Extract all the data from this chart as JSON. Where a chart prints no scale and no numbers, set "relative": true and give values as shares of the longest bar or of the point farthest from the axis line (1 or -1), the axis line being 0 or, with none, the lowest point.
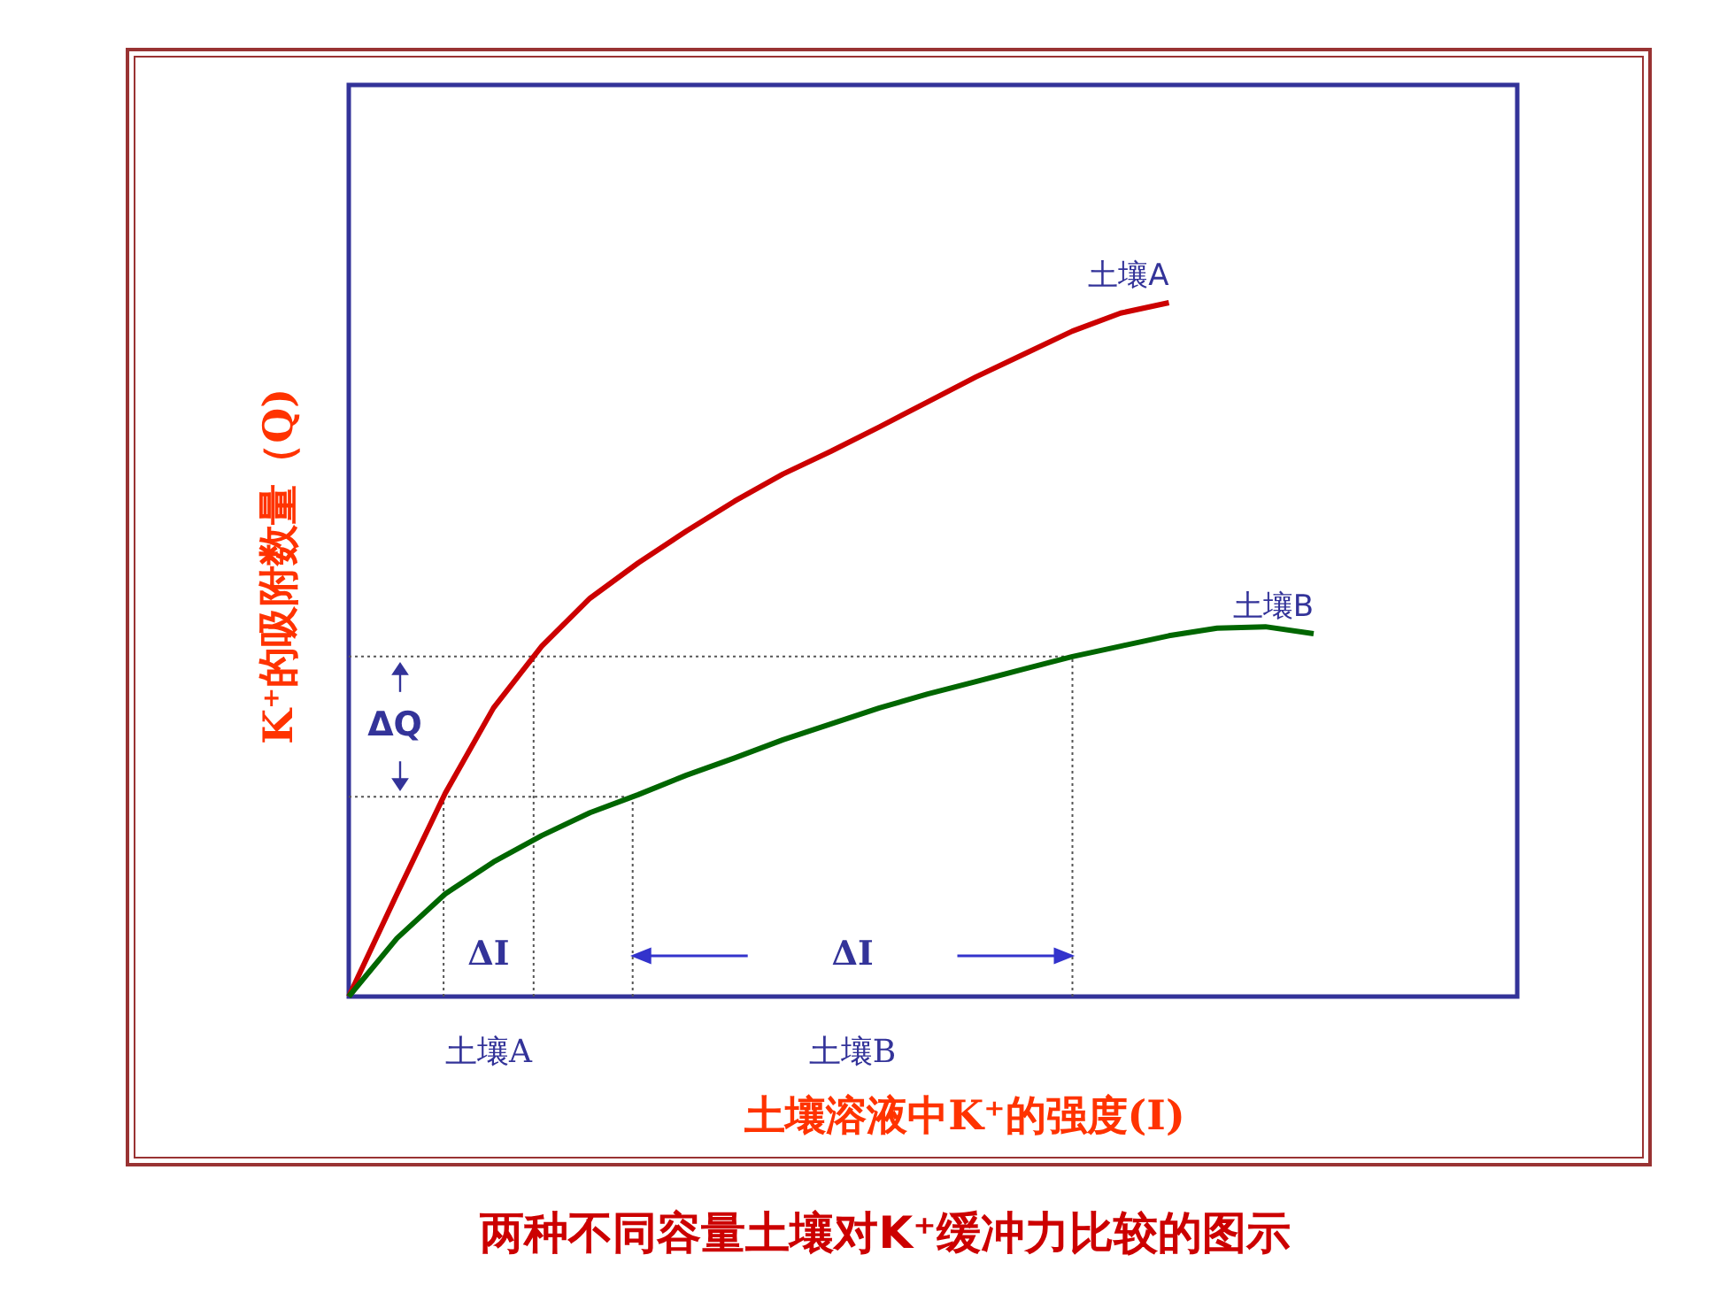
{
  "chart_data": {
    "type": "line",
    "relative": true,
    "title": "两种不同容量土壤对K⁺缓冲力比较的图示",
    "xlabel": "土壤溶液中K⁺的强度(I)",
    "ylabel": "K⁺的吸附数量（Q)",
    "marker": "none",
    "line_style": "solid",
    "categories": [
      null,
      null,
      null,
      null,
      null,
      null,
      null,
      null,
      null,
      null,
      null,
      null,
      null,
      null,
      null,
      null,
      null,
      null,
      null,
      null,
      null
    ],
    "series": [
      {
        "name": "土壤A",
        "color": "#cc0000",
        "values": [
          0,
          0.148,
          0.293,
          0.416,
          0.505,
          0.574,
          0.625,
          0.671,
          0.714,
          0.753,
          0.786,
          0.821,
          0.857,
          0.893,
          0.926,
          0.959,
          0.985,
          1,
          null,
          null,
          null
        ]
      },
      {
        "name": "土壤B",
        "color": "#006600",
        "values": [
          0,
          0.084,
          0.148,
          0.194,
          0.232,
          0.265,
          0.291,
          0.319,
          0.344,
          0.37,
          0.393,
          0.416,
          0.436,
          0.454,
          0.472,
          0.49,
          0.505,
          0.52,
          0.531,
          0.533,
          0.523
        ]
      }
    ],
    "ref_lines": [
      {
        "axis": "y",
        "value": 0.49,
        "line_style": "dotted",
        "color": "#555555"
      },
      {
        "axis": "y",
        "value": 0.288,
        "line_style": "dotted",
        "color": "#555555"
      }
    ],
    "annotations": [
      "ΔQ",
      "ΔI",
      "ΔI",
      "土壤A",
      "土壤B"
    ]
  }
}
